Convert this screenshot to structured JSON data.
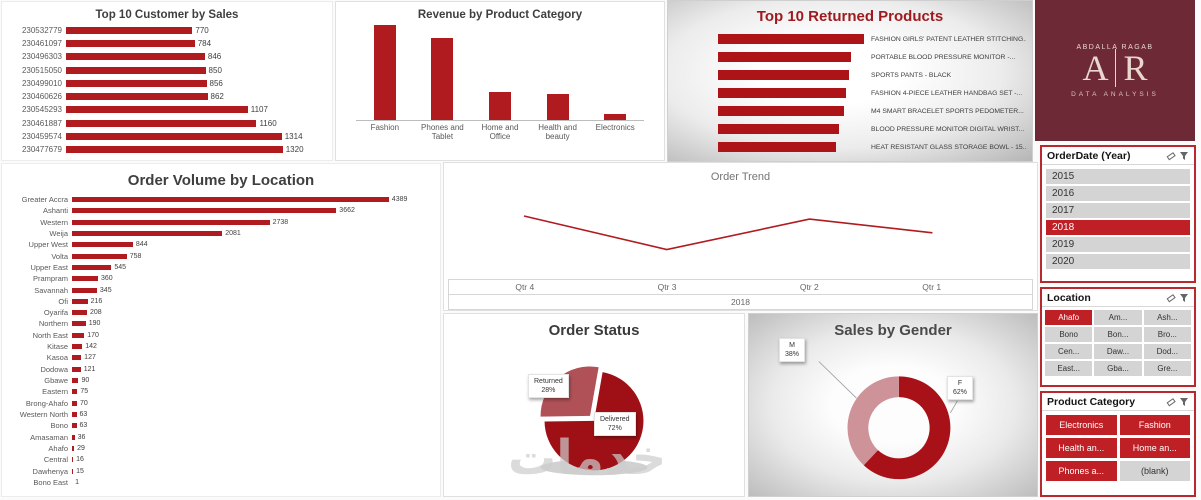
{
  "watermark": "خدمات",
  "logo": {
    "name_small": "ABDALLA RAGAB",
    "monogram_left": "A",
    "monogram_right": "R",
    "subtitle": "DATA ANALYSIS"
  },
  "colors": {
    "primary_red": "#B01B20",
    "selected_red": "#BE2026",
    "logo_background": "#6E2937",
    "slicer_item_gray": "#D4D4D4"
  },
  "slicers": {
    "order_date": {
      "title": "OrderDate (Year)",
      "items": [
        {
          "label": "2015",
          "selected": false
        },
        {
          "label": "2016",
          "selected": false
        },
        {
          "label": "2017",
          "selected": false
        },
        {
          "label": "2018",
          "selected": true
        },
        {
          "label": "2019",
          "selected": false
        },
        {
          "label": "2020",
          "selected": false
        }
      ]
    },
    "location": {
      "title": "Location",
      "items": [
        {
          "label": "Ahafo",
          "selected": true
        },
        {
          "label": "Am...",
          "selected": false
        },
        {
          "label": "Ash...",
          "selected": false
        },
        {
          "label": "Bono",
          "selected": false
        },
        {
          "label": "Bon...",
          "selected": false
        },
        {
          "label": "Bro...",
          "selected": false
        },
        {
          "label": "Cen...",
          "selected": false
        },
        {
          "label": "Daw...",
          "selected": false
        },
        {
          "label": "Dod...",
          "selected": false
        },
        {
          "label": "East...",
          "selected": false
        },
        {
          "label": "Gba...",
          "selected": false
        },
        {
          "label": "Gre...",
          "selected": false
        }
      ]
    },
    "product_category": {
      "title": "Product Category",
      "items": [
        {
          "label": "Electronics",
          "selected": true
        },
        {
          "label": "Fashion",
          "selected": true
        },
        {
          "label": "Health an...",
          "selected": true
        },
        {
          "label": "Home an...",
          "selected": true
        },
        {
          "label": "Phones a...",
          "selected": true
        },
        {
          "label": "(blank)",
          "selected": false
        }
      ]
    }
  },
  "chart_data": [
    {
      "id": "customer_sales",
      "type": "bar",
      "orientation": "horizontal",
      "title": "Top 10 Customer by Sales",
      "categories": [
        "230532779",
        "230461097",
        "230496303",
        "230515050",
        "230499010",
        "230460626",
        "230545293",
        "230461887",
        "230459574",
        "230477679"
      ],
      "values": [
        770,
        784,
        846,
        850,
        856,
        862,
        1107,
        1160,
        1314,
        1320
      ]
    },
    {
      "id": "revenue_by_category",
      "type": "bar",
      "orientation": "vertical",
      "title": "Revenue by Product Category",
      "categories": [
        "Fashion",
        "Phones and Tablet",
        "Home and Office",
        "Health and beauty",
        "Electronics"
      ],
      "relative_values": [
        100,
        86,
        30,
        27,
        6
      ],
      "note": "y-axis unlabeled; values are relative bar heights"
    },
    {
      "id": "returned_products",
      "type": "bar",
      "orientation": "horizontal",
      "title": "Top 10 Returned Products",
      "categories": [
        "FASHION GIRLS' PATENT LEATHER STITCHING...",
        "PORTABLE BLOOD PRESSURE MONITOR -...",
        "SPORTS PANTS - BLACK",
        "FASHION 4-PIECE LEATHER HANDBAG SET -...",
        "M4 SMART BRACELET SPORTS PEDOMETER...",
        "BLOOD PRESSURE MONITOR DIGITAL WRIST...",
        "HEAT RESISTANT GLASS STORAGE BOWL - 15..."
      ],
      "relative_values": [
        100,
        91,
        90,
        88,
        86,
        83,
        81
      ],
      "note": "axis unlabeled; values are relative bar widths"
    },
    {
      "id": "order_volume_by_location",
      "type": "bar",
      "orientation": "horizontal",
      "title": "Order Volume by Location",
      "categories": [
        "Greater Accra",
        "Ashanti",
        "Western",
        "Weija",
        "Upper West",
        "Volta",
        "Upper East",
        "Prampram",
        "Savannah",
        "Ofi",
        "Oyarifa",
        "Northern",
        "North East",
        "Kitase",
        "Kasoa",
        "Dodowa",
        "Gbawe",
        "Eastern",
        "Brong-Ahafo",
        "Western North",
        "Bono",
        "Amasaman",
        "Ahafo",
        "Central",
        "Dawhenya",
        "Bono East"
      ],
      "values": [
        4389,
        3662,
        2738,
        2081,
        844,
        758,
        545,
        360,
        345,
        216,
        208,
        190,
        170,
        142,
        127,
        121,
        90,
        75,
        70,
        63,
        63,
        36,
        29,
        16,
        15,
        1
      ]
    },
    {
      "id": "order_trend",
      "type": "line",
      "title": "Order Trend",
      "x": [
        "Qtr 4",
        "Qtr 3",
        "Qtr 2",
        "Qtr 1"
      ],
      "axis_group_label": "2018",
      "relative_values": [
        0.71,
        0.27,
        0.67,
        0.49
      ],
      "note": "y-axis unlabeled; values are relative heights"
    },
    {
      "id": "order_status",
      "type": "pie",
      "title": "Order Status",
      "slices": [
        {
          "label": "Delivered",
          "pct": 72
        },
        {
          "label": "Returned",
          "pct": 28
        }
      ]
    },
    {
      "id": "sales_by_gender",
      "type": "donut",
      "title": "Sales by Gender",
      "slices": [
        {
          "label": "F",
          "pct": 62
        },
        {
          "label": "M",
          "pct": 38
        }
      ]
    }
  ]
}
